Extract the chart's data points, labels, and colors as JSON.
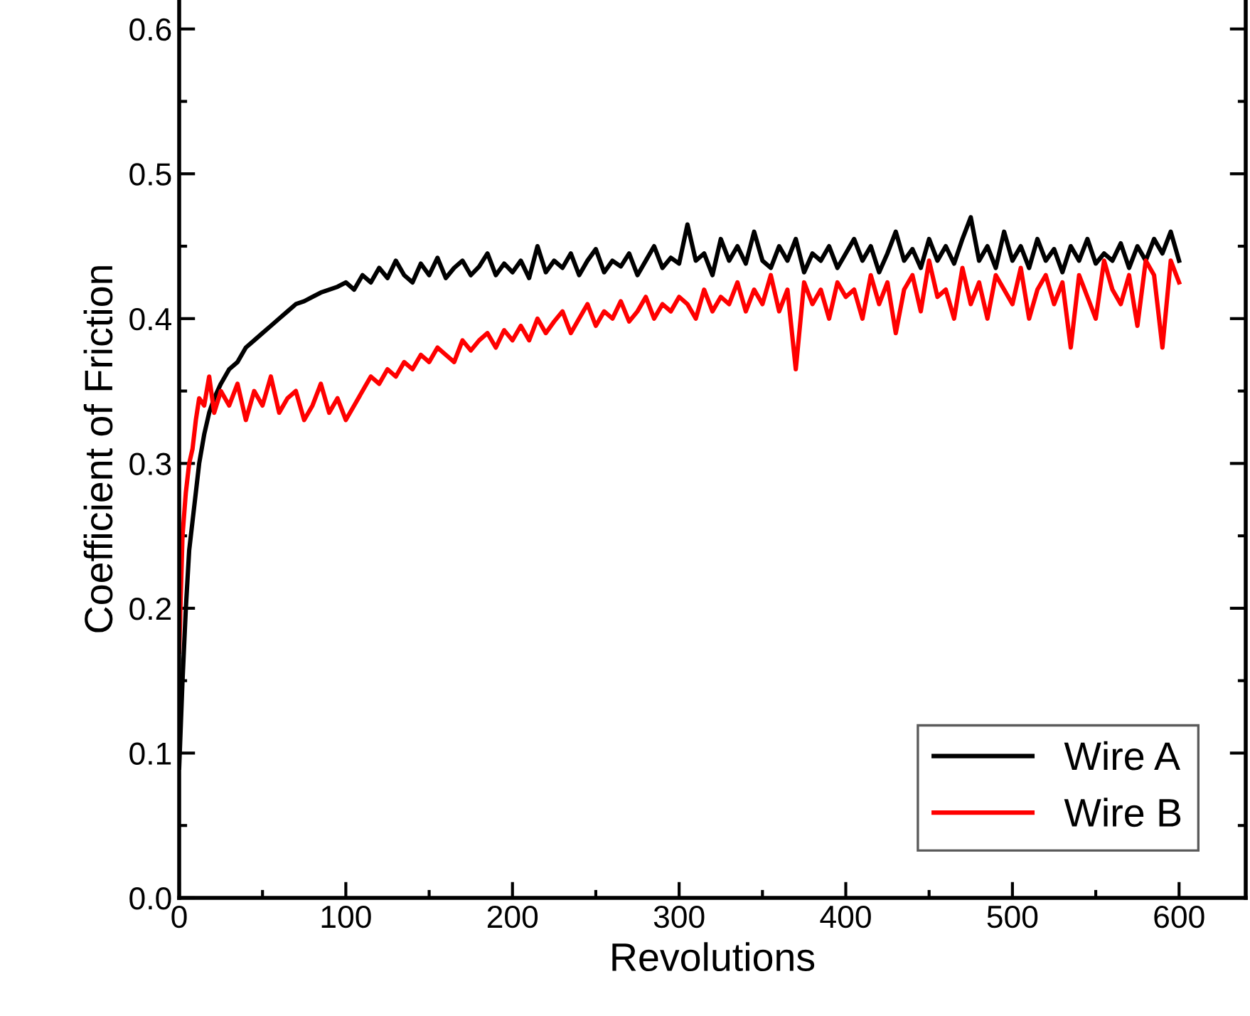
{
  "chart_data": {
    "type": "line",
    "xlabel": "Revolutions",
    "ylabel": "Coefficient of Friction",
    "xlim": [
      0,
      640
    ],
    "ylim": [
      0,
      0.62
    ],
    "xticks": [
      0,
      100,
      200,
      300,
      400,
      500,
      600
    ],
    "yticks": [
      {
        "value": 0,
        "label": "0.0"
      },
      0.1,
      0.2,
      0.3,
      0.4,
      0.5,
      0.6
    ],
    "grid": false,
    "legend": "bottom right",
    "marker": "none",
    "line_style": "solid",
    "series": [
      {
        "name": "Wire A",
        "color": "#000000",
        "x": [
          0,
          2,
          4,
          6,
          8,
          10,
          12,
          15,
          18,
          21,
          25,
          30,
          35,
          40,
          45,
          50,
          55,
          60,
          65,
          70,
          75,
          80,
          85,
          90,
          95,
          100,
          105,
          110,
          115,
          120,
          125,
          130,
          135,
          140,
          145,
          150,
          155,
          160,
          165,
          170,
          175,
          180,
          185,
          190,
          195,
          200,
          205,
          210,
          215,
          220,
          225,
          230,
          235,
          240,
          245,
          250,
          255,
          260,
          265,
          270,
          275,
          280,
          285,
          290,
          295,
          300,
          305,
          310,
          315,
          320,
          325,
          330,
          335,
          340,
          345,
          350,
          355,
          360,
          365,
          370,
          375,
          380,
          385,
          390,
          395,
          400,
          405,
          410,
          415,
          420,
          425,
          430,
          435,
          440,
          445,
          450,
          455,
          460,
          465,
          470,
          475,
          480,
          485,
          490,
          495,
          500,
          505,
          510,
          515,
          520,
          525,
          530,
          535,
          540,
          545,
          550,
          555,
          560,
          565,
          570,
          575,
          580,
          585,
          590,
          595,
          600
        ],
        "values": [
          0.09,
          0.15,
          0.2,
          0.24,
          0.26,
          0.28,
          0.3,
          0.32,
          0.335,
          0.345,
          0.355,
          0.365,
          0.37,
          0.38,
          0.385,
          0.39,
          0.395,
          0.4,
          0.405,
          0.41,
          0.412,
          0.415,
          0.418,
          0.42,
          0.422,
          0.425,
          0.42,
          0.43,
          0.425,
          0.435,
          0.428,
          0.44,
          0.43,
          0.425,
          0.438,
          0.43,
          0.442,
          0.428,
          0.435,
          0.44,
          0.43,
          0.436,
          0.445,
          0.43,
          0.438,
          0.432,
          0.44,
          0.428,
          0.45,
          0.432,
          0.44,
          0.435,
          0.445,
          0.43,
          0.44,
          0.448,
          0.432,
          0.44,
          0.436,
          0.445,
          0.43,
          0.44,
          0.45,
          0.435,
          0.442,
          0.438,
          0.465,
          0.44,
          0.445,
          0.43,
          0.455,
          0.44,
          0.45,
          0.438,
          0.46,
          0.44,
          0.435,
          0.45,
          0.44,
          0.455,
          0.432,
          0.445,
          0.44,
          0.45,
          0.435,
          0.445,
          0.455,
          0.44,
          0.45,
          0.432,
          0.445,
          0.46,
          0.44,
          0.448,
          0.435,
          0.455,
          0.44,
          0.45,
          0.438,
          0.455,
          0.47,
          0.44,
          0.45,
          0.435,
          0.46,
          0.44,
          0.45,
          0.435,
          0.455,
          0.44,
          0.448,
          0.432,
          0.45,
          0.44,
          0.455,
          0.438,
          0.445,
          0.44,
          0.452,
          0.435,
          0.45,
          0.44,
          0.455,
          0.445,
          0.46,
          0.44
        ]
      },
      {
        "name": "Wire B",
        "color": "#ff0000",
        "x": [
          0,
          2,
          4,
          6,
          8,
          10,
          12,
          15,
          18,
          21,
          25,
          30,
          35,
          40,
          45,
          50,
          55,
          60,
          65,
          70,
          75,
          80,
          85,
          90,
          95,
          100,
          105,
          110,
          115,
          120,
          125,
          130,
          135,
          140,
          145,
          150,
          155,
          160,
          165,
          170,
          175,
          180,
          185,
          190,
          195,
          200,
          205,
          210,
          215,
          220,
          225,
          230,
          235,
          240,
          245,
          250,
          255,
          260,
          265,
          270,
          275,
          280,
          285,
          290,
          295,
          300,
          305,
          310,
          315,
          320,
          325,
          330,
          335,
          340,
          345,
          350,
          355,
          360,
          365,
          370,
          375,
          380,
          385,
          390,
          395,
          400,
          405,
          410,
          415,
          420,
          425,
          430,
          435,
          440,
          445,
          450,
          455,
          460,
          465,
          470,
          475,
          480,
          485,
          490,
          495,
          500,
          505,
          510,
          515,
          520,
          525,
          530,
          535,
          540,
          545,
          550,
          555,
          560,
          565,
          570,
          575,
          580,
          585,
          590,
          595,
          600
        ],
        "values": [
          0.17,
          0.25,
          0.28,
          0.3,
          0.31,
          0.33,
          0.345,
          0.34,
          0.36,
          0.335,
          0.35,
          0.34,
          0.355,
          0.33,
          0.35,
          0.34,
          0.36,
          0.335,
          0.345,
          0.35,
          0.33,
          0.34,
          0.355,
          0.335,
          0.345,
          0.33,
          0.34,
          0.35,
          0.36,
          0.355,
          0.365,
          0.36,
          0.37,
          0.365,
          0.375,
          0.37,
          0.38,
          0.375,
          0.37,
          0.385,
          0.378,
          0.385,
          0.39,
          0.38,
          0.392,
          0.385,
          0.395,
          0.385,
          0.4,
          0.39,
          0.398,
          0.405,
          0.39,
          0.4,
          0.41,
          0.395,
          0.405,
          0.4,
          0.412,
          0.398,
          0.405,
          0.415,
          0.4,
          0.41,
          0.405,
          0.415,
          0.41,
          0.4,
          0.42,
          0.405,
          0.415,
          0.41,
          0.425,
          0.405,
          0.42,
          0.41,
          0.43,
          0.405,
          0.42,
          0.365,
          0.425,
          0.41,
          0.42,
          0.4,
          0.425,
          0.415,
          0.42,
          0.4,
          0.43,
          0.41,
          0.425,
          0.39,
          0.42,
          0.43,
          0.405,
          0.44,
          0.415,
          0.42,
          0.4,
          0.435,
          0.41,
          0.425,
          0.4,
          0.43,
          0.42,
          0.41,
          0.435,
          0.4,
          0.42,
          0.43,
          0.41,
          0.425,
          0.38,
          0.43,
          0.415,
          0.4,
          0.44,
          0.42,
          0.41,
          0.43,
          0.395,
          0.44,
          0.43,
          0.38,
          0.44,
          0.425
        ]
      }
    ]
  }
}
